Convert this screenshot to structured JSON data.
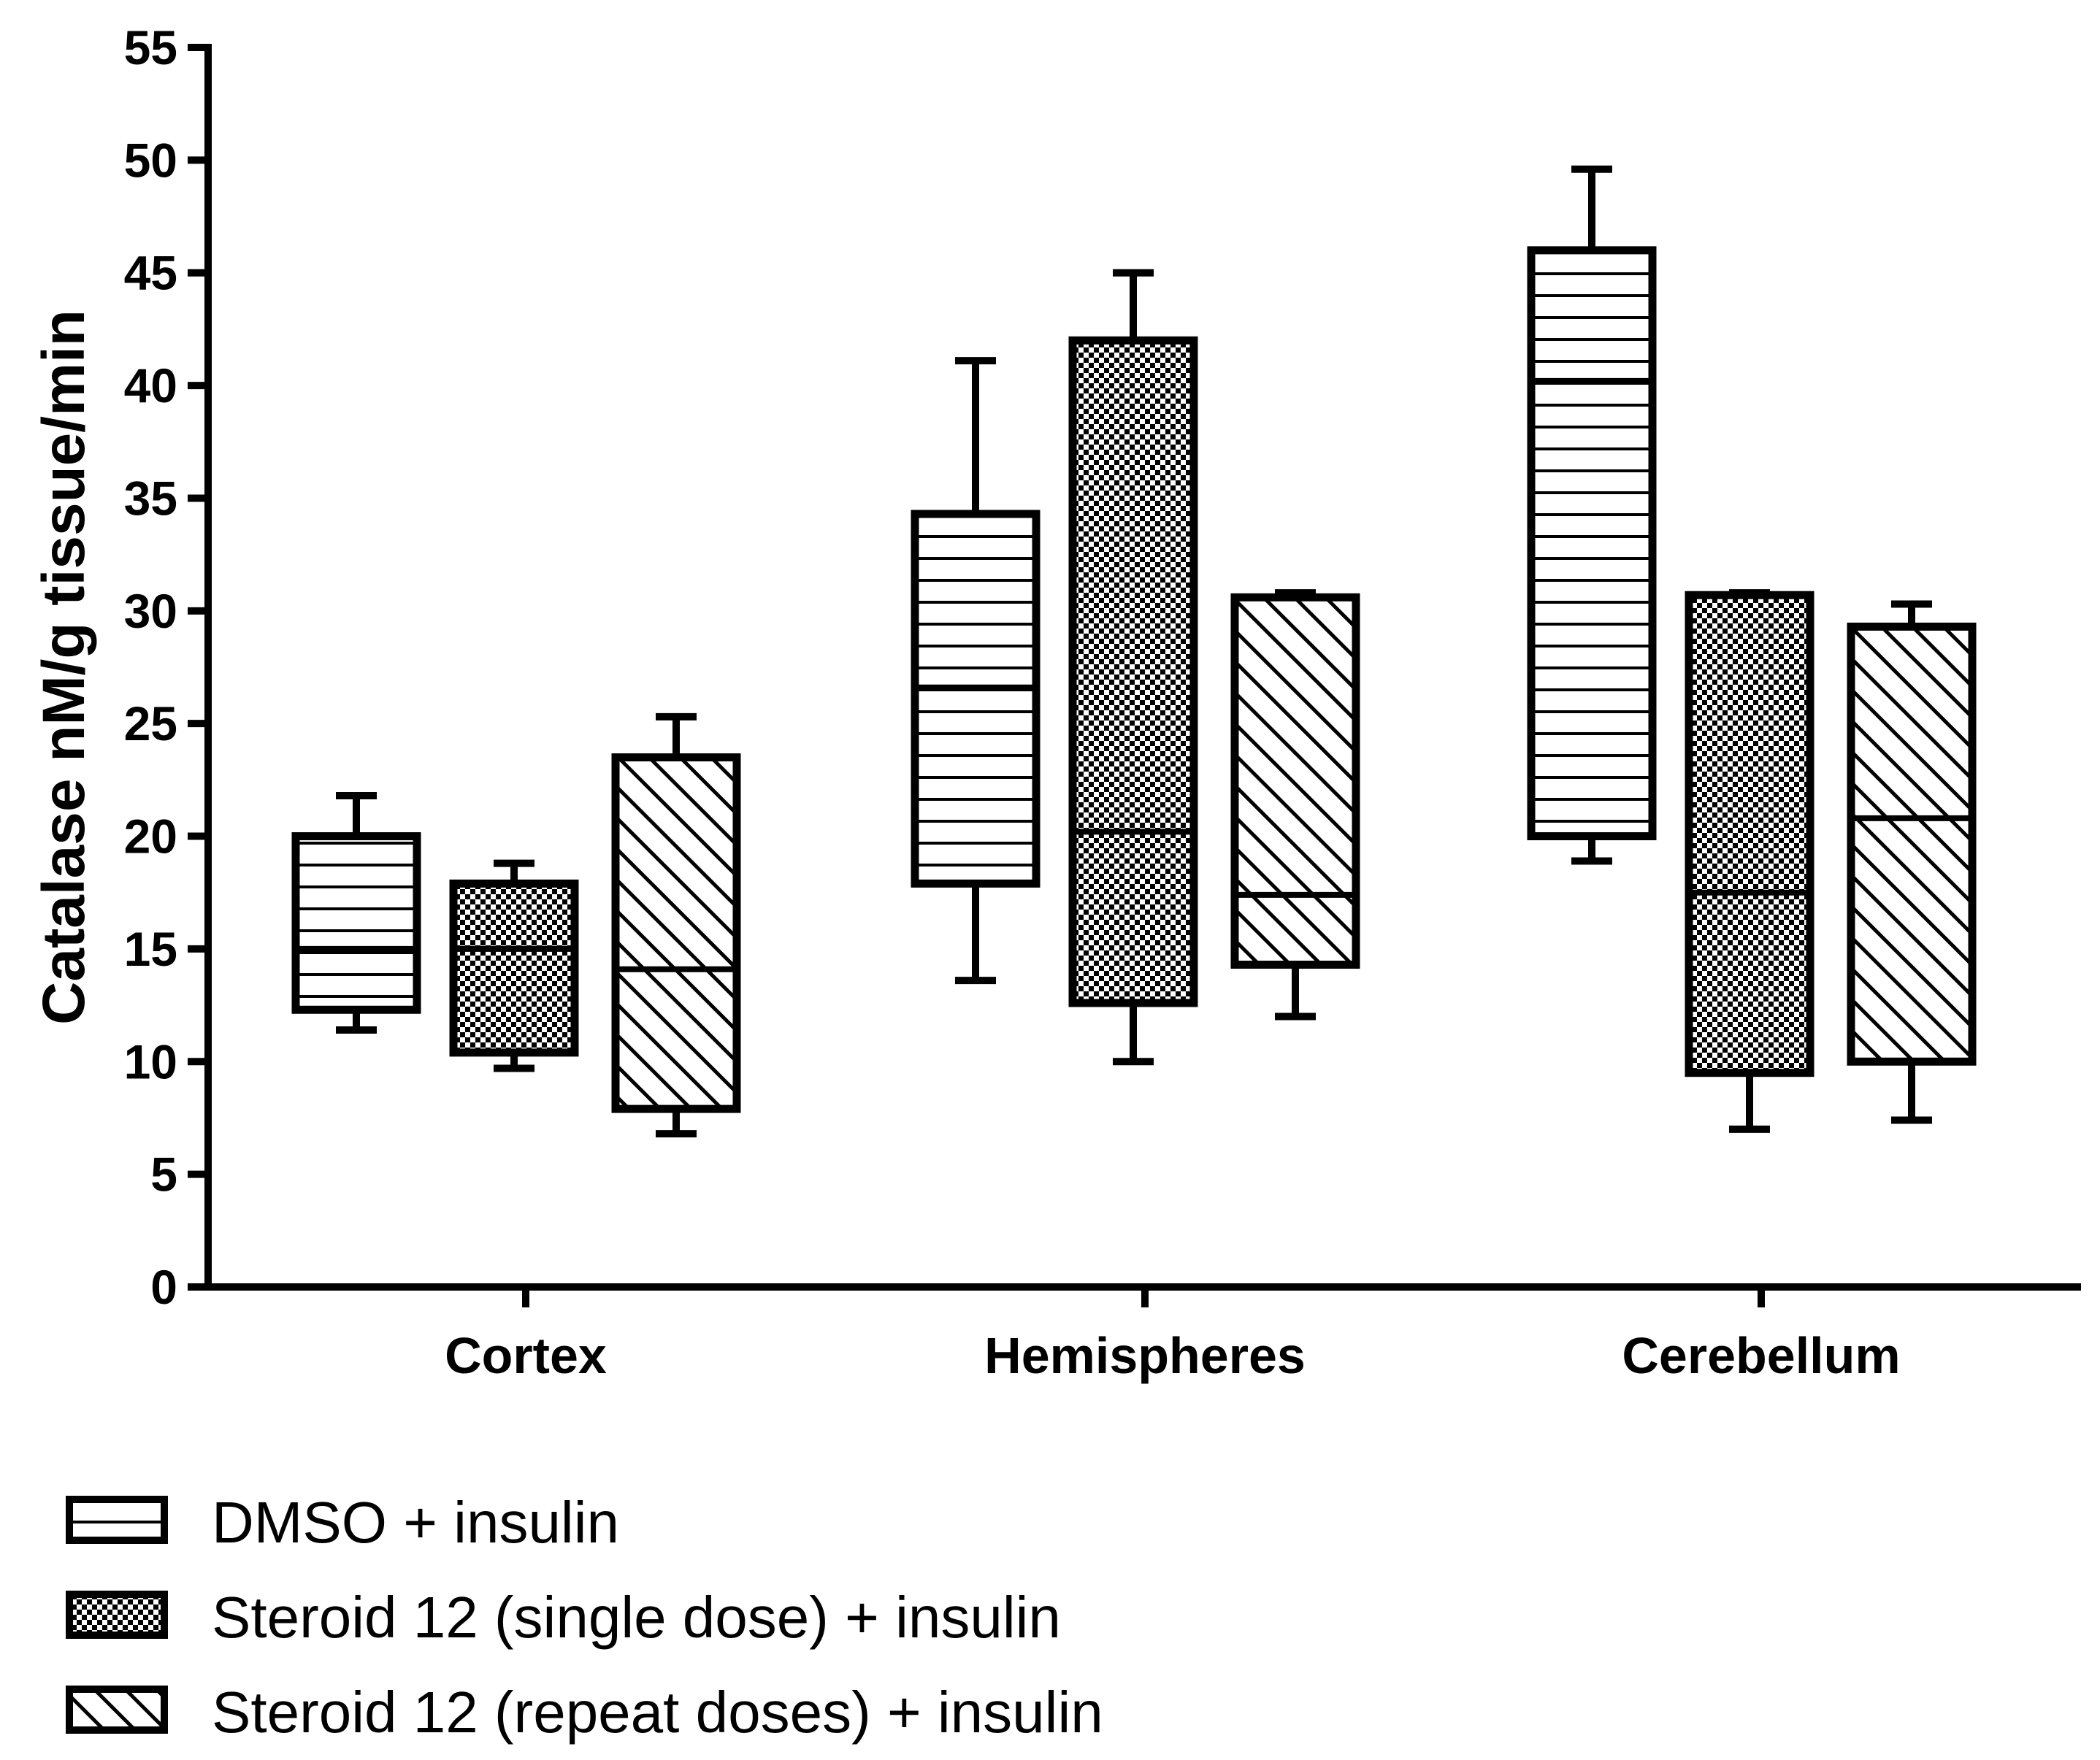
{
  "chart_data": {
    "type": "box",
    "title": "",
    "xlabel": "",
    "ylabel": "Catalase nM/g tissue/min",
    "ylim": [
      0,
      55
    ],
    "yticks": [
      0,
      5,
      10,
      15,
      20,
      25,
      30,
      35,
      40,
      45,
      50,
      55
    ],
    "categories": [
      "Cortex",
      "Hemispheres",
      "Cerebellum"
    ],
    "series": [
      {
        "name": "DMSO + insulin",
        "pattern": "horizontal-lines",
        "boxes": [
          {
            "min": 11.4,
            "q1": 12.3,
            "median": 15.0,
            "q3": 20.0,
            "max": 21.8
          },
          {
            "min": 13.6,
            "q1": 17.9,
            "median": 26.6,
            "q3": 34.3,
            "max": 41.1
          },
          {
            "min": 18.9,
            "q1": 20.0,
            "median": 40.2,
            "q3": 46.0,
            "max": 49.6
          }
        ]
      },
      {
        "name": "Steroid 12 (single dose) + insulin",
        "pattern": "checkered",
        "boxes": [
          {
            "min": 9.7,
            "q1": 10.4,
            "median": 15.0,
            "q3": 17.9,
            "max": 18.8
          },
          {
            "min": 10.0,
            "q1": 12.6,
            "median": 20.2,
            "q3": 42.0,
            "max": 45.0
          },
          {
            "min": 7.0,
            "q1": 9.5,
            "median": 17.5,
            "q3": 30.7,
            "max": 30.8
          }
        ]
      },
      {
        "name": "Steroid 12 (repeat doses) + insulin",
        "pattern": "diagonal-lines",
        "boxes": [
          {
            "min": 6.8,
            "q1": 7.9,
            "median": 14.1,
            "q3": 23.5,
            "max": 25.3
          },
          {
            "min": 12.0,
            "q1": 14.3,
            "median": 17.4,
            "q3": 30.6,
            "max": 30.8
          },
          {
            "min": 7.4,
            "q1": 10.0,
            "median": 20.8,
            "q3": 29.3,
            "max": 30.3
          }
        ]
      }
    ],
    "legend_position": "bottom-left"
  }
}
